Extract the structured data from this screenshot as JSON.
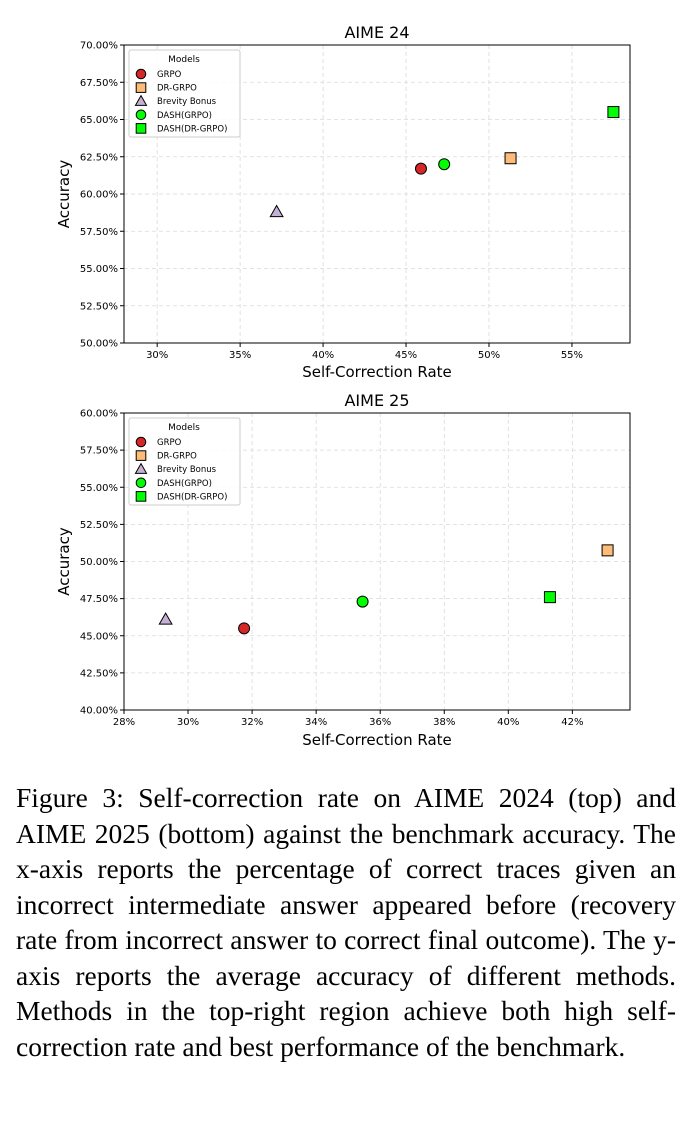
{
  "chart_data": [
    {
      "type": "scatter",
      "title": "AIME 24",
      "xlabel": "Self-Correction Rate",
      "ylabel": "Accuracy",
      "xlim": [
        28,
        58.5
      ],
      "ylim": [
        50,
        70
      ],
      "xticks": [
        {
          "value": 30,
          "label": "30%"
        },
        {
          "value": 35,
          "label": "35%"
        },
        {
          "value": 40,
          "label": "40%"
        },
        {
          "value": 45,
          "label": "45%"
        },
        {
          "value": 50,
          "label": "50%"
        },
        {
          "value": 55,
          "label": "55%"
        }
      ],
      "yticks": [
        {
          "value": 50,
          "label": "50.00%"
        },
        {
          "value": 52.5,
          "label": "52.50%"
        },
        {
          "value": 55,
          "label": "55.00%"
        },
        {
          "value": 57.5,
          "label": "57.50%"
        },
        {
          "value": 60,
          "label": "60.00%"
        },
        {
          "value": 62.5,
          "label": "62.50%"
        },
        {
          "value": 65,
          "label": "65.00%"
        },
        {
          "value": 67.5,
          "label": "67.50%"
        },
        {
          "value": 70,
          "label": "70.00%"
        }
      ],
      "grid": true,
      "legend": {
        "title": "Models",
        "placement": "top-left"
      },
      "series": [
        {
          "name": "GRPO",
          "marker": "circle",
          "color": "#d62728",
          "x": 45.9,
          "y": 61.7
        },
        {
          "name": "DR-GRPO",
          "marker": "square",
          "color": "#ffbb78",
          "x": 51.3,
          "y": 62.4
        },
        {
          "name": "Brevity Bonus",
          "marker": "triangle",
          "color": "#c5b0d5",
          "x": 37.2,
          "y": 58.8
        },
        {
          "name": "DASH(GRPO)",
          "marker": "circle",
          "color": "#00ff00",
          "x": 47.3,
          "y": 62.0
        },
        {
          "name": "DASH(DR-GRPO)",
          "marker": "square",
          "color": "#00ff00",
          "x": 57.5,
          "y": 65.5
        }
      ]
    },
    {
      "type": "scatter",
      "title": "AIME 25",
      "xlabel": "Self-Correction Rate",
      "ylabel": "Accuracy",
      "xlim": [
        28,
        43.8
      ],
      "ylim": [
        40,
        60
      ],
      "xticks": [
        {
          "value": 28,
          "label": "28%"
        },
        {
          "value": 30,
          "label": "30%"
        },
        {
          "value": 32,
          "label": "32%"
        },
        {
          "value": 34,
          "label": "34%"
        },
        {
          "value": 36,
          "label": "36%"
        },
        {
          "value": 38,
          "label": "38%"
        },
        {
          "value": 40,
          "label": "40%"
        },
        {
          "value": 42,
          "label": "42%"
        }
      ],
      "yticks": [
        {
          "value": 40,
          "label": "40.00%"
        },
        {
          "value": 42.5,
          "label": "42.50%"
        },
        {
          "value": 45,
          "label": "45.00%"
        },
        {
          "value": 47.5,
          "label": "47.50%"
        },
        {
          "value": 50,
          "label": "50.00%"
        },
        {
          "value": 52.5,
          "label": "52.50%"
        },
        {
          "value": 55,
          "label": "55.00%"
        },
        {
          "value": 57.5,
          "label": "57.50%"
        },
        {
          "value": 60,
          "label": "60.00%"
        }
      ],
      "grid": true,
      "legend": {
        "title": "Models",
        "placement": "top-left"
      },
      "series": [
        {
          "name": "GRPO",
          "marker": "circle",
          "color": "#d62728",
          "x": 31.75,
          "y": 45.5
        },
        {
          "name": "DR-GRPO",
          "marker": "square",
          "color": "#ffbb78",
          "x": 43.1,
          "y": 50.75
        },
        {
          "name": "Brevity Bonus",
          "marker": "triangle",
          "color": "#c5b0d5",
          "x": 29.3,
          "y": 46.1
        },
        {
          "name": "DASH(GRPO)",
          "marker": "circle",
          "color": "#00ff00",
          "x": 35.45,
          "y": 47.3
        },
        {
          "name": "DASH(DR-GRPO)",
          "marker": "square",
          "color": "#00ff00",
          "x": 41.3,
          "y": 47.6
        }
      ]
    }
  ],
  "caption": "Figure 3: Self-correction rate on AIME 2024 (top) and AIME 2025 (bottom) against the benchmark accuracy. The x-axis reports the percentage of correct traces given an incorrect intermediate answer appeared before (re­covery rate from incorrect answer to correct final out­come). The y-axis reports the average accuracy of dif­ferent methods. Methods in the top-right region achieve both high self-correction rate and best performance of the benchmark."
}
